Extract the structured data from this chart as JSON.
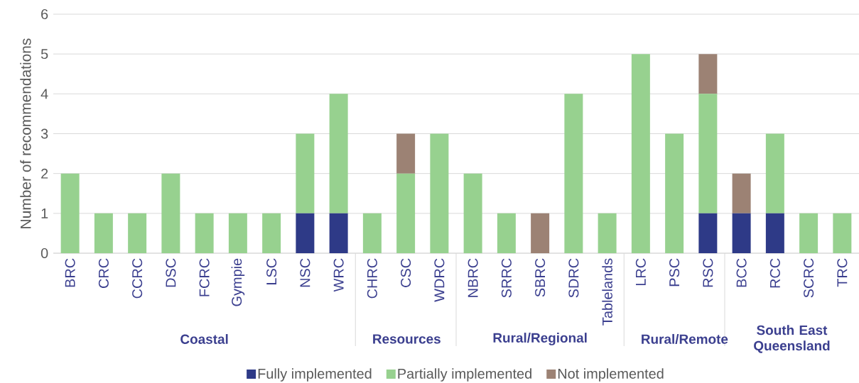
{
  "chart_data": {
    "type": "bar",
    "stacked": true,
    "ylabel": "Number of recommendations",
    "categories": [
      "BRC",
      "CRC",
      "CCRC",
      "DSC",
      "FCRC",
      "Gympie",
      "LSC",
      "NSC",
      "WRC",
      "CHRC",
      "CSC",
      "WDRC",
      "NBRC",
      "SRRC",
      "SBRC",
      "SDRC",
      "Tablelands",
      "LRC",
      "PSC",
      "RSC",
      "BCC",
      "RCC",
      "SCRC",
      "TRC"
    ],
    "series": [
      {
        "name": "Fully implemented",
        "color": "#2e3a87",
        "values": [
          0,
          0,
          0,
          0,
          0,
          0,
          0,
          1,
          1,
          0,
          0,
          0,
          0,
          0,
          0,
          0,
          0,
          0,
          0,
          1,
          1,
          1,
          0,
          0
        ]
      },
      {
        "name": "Partially implemented",
        "color": "#97d18f",
        "values": [
          2,
          1,
          1,
          2,
          1,
          1,
          1,
          2,
          3,
          1,
          2,
          3,
          2,
          1,
          0,
          4,
          1,
          5,
          3,
          3,
          0,
          2,
          1,
          1
        ]
      },
      {
        "name": "Not implemented",
        "color": "#9c8274",
        "values": [
          0,
          0,
          0,
          0,
          0,
          0,
          0,
          0,
          0,
          0,
          1,
          0,
          0,
          0,
          1,
          0,
          0,
          0,
          0,
          1,
          1,
          0,
          0,
          0
        ]
      }
    ],
    "annotations": [
      "Coastal",
      "Resources",
      "Rural/Regional",
      "Rural/Remote",
      "South East Queensland"
    ],
    "ylim": [
      0,
      6
    ],
    "yticks": [
      0,
      1,
      2,
      3,
      4,
      5,
      6
    ],
    "grid": "y",
    "legend": "bottom"
  }
}
